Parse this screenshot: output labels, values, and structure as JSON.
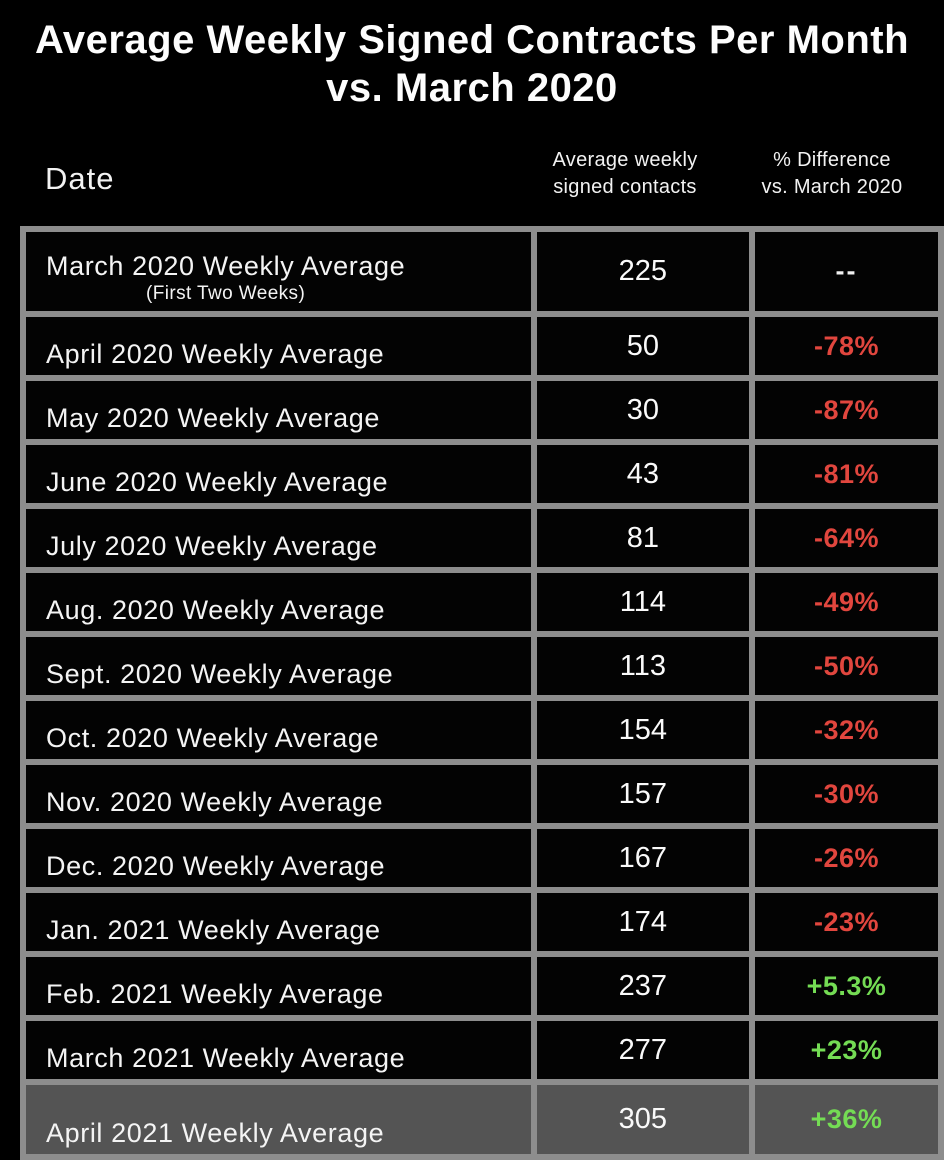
{
  "title": {
    "line1": "Average Weekly Signed Contracts Per Month",
    "line2": "vs. March 2020"
  },
  "header": {
    "date": "Date",
    "avg": {
      "line1": "Average weekly",
      "line2": "signed contacts"
    },
    "diff": {
      "line1": "% Difference",
      "line2": "vs. March 2020"
    }
  },
  "colors": {
    "negative": "#e1463e",
    "positive": "#74dc54",
    "grid": "#8d8d8d",
    "highlight_row_bg": "#545454",
    "background": "#000000",
    "text": "#f5f5f5"
  },
  "table": {
    "rows": [
      {
        "label": "March 2020 Weekly Average",
        "sublabel": "(First Two Weeks)",
        "value": "225",
        "diff": "--",
        "trend": "neutral"
      },
      {
        "label": "April 2020 Weekly Average",
        "value": "50",
        "diff": "-78%",
        "trend": "negative"
      },
      {
        "label": "May 2020 Weekly Average",
        "value": "30",
        "diff": "-87%",
        "trend": "negative"
      },
      {
        "label": "June 2020 Weekly Average",
        "value": "43",
        "diff": "-81%",
        "trend": "negative"
      },
      {
        "label": "July 2020 Weekly Average",
        "value": "81",
        "diff": "-64%",
        "trend": "negative"
      },
      {
        "label": "Aug. 2020 Weekly Average",
        "value": "114",
        "diff": "-49%",
        "trend": "negative"
      },
      {
        "label": "Sept. 2020 Weekly Average",
        "value": "113",
        "diff": "-50%",
        "trend": "negative"
      },
      {
        "label": "Oct. 2020 Weekly Average",
        "value": "154",
        "diff": "-32%",
        "trend": "negative"
      },
      {
        "label": "Nov. 2020 Weekly Average",
        "value": "157",
        "diff": "-30%",
        "trend": "negative"
      },
      {
        "label": "Dec. 2020 Weekly Average",
        "value": "167",
        "diff": "-26%",
        "trend": "negative"
      },
      {
        "label": "Jan. 2021 Weekly Average",
        "value": "174",
        "diff": "-23%",
        "trend": "negative"
      },
      {
        "label": "Feb. 2021 Weekly Average",
        "value": "237",
        "diff": "+5.3%",
        "trend": "positive"
      },
      {
        "label": "March 2021 Weekly Average",
        "value": "277",
        "diff": "+23%",
        "trend": "positive"
      },
      {
        "label": "April 2021 Weekly Average",
        "value": "305",
        "diff": "+36%",
        "trend": "positive",
        "highlighted": true
      }
    ]
  },
  "chart_data": {
    "type": "table",
    "title": "Average Weekly Signed Contracts Per Month vs. March 2020",
    "columns": [
      "Date",
      "Average weekly signed contacts",
      "% Difference vs. March 2020"
    ],
    "categories": [
      "March 2020 (First Two Weeks)",
      "April 2020",
      "May 2020",
      "June 2020",
      "July 2020",
      "Aug. 2020",
      "Sept. 2020",
      "Oct. 2020",
      "Nov. 2020",
      "Dec. 2020",
      "Jan. 2021",
      "Feb. 2021",
      "March 2021",
      "April 2021"
    ],
    "series": [
      {
        "name": "Average weekly signed contacts",
        "values": [
          225,
          50,
          30,
          43,
          81,
          114,
          113,
          154,
          157,
          167,
          174,
          237,
          277,
          305
        ]
      },
      {
        "name": "% Difference vs. March 2020",
        "values": [
          null,
          -78,
          -87,
          -81,
          -64,
          -49,
          -50,
          -32,
          -30,
          -26,
          -23,
          5.3,
          23,
          36
        ]
      }
    ],
    "annotations": [
      "Baseline row March 2020 shows '--' for % difference",
      "April 2021 row is highlighted with gray background"
    ]
  }
}
